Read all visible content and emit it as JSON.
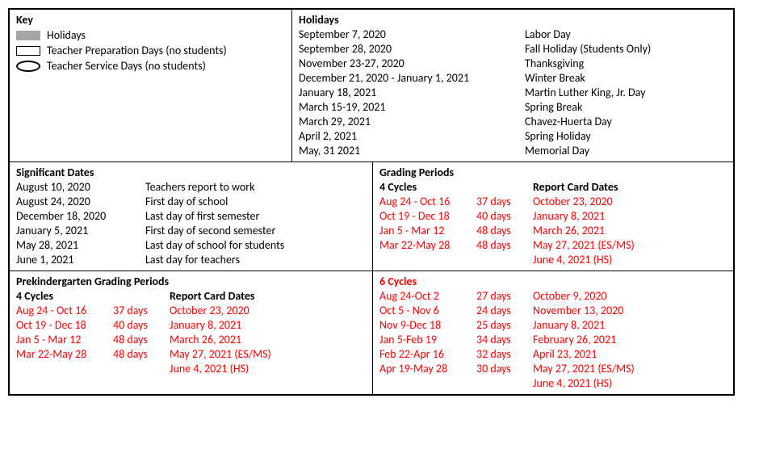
{
  "key": {
    "header": "Key",
    "legend": [
      {
        "swatch_class": "swatch-gray",
        "label": "Holidays"
      },
      {
        "swatch_class": "swatch-white",
        "label": "Teacher Preparation Days (no students)"
      },
      {
        "swatch_class": "swatch-oval",
        "label": "Teacher Service Days (no students)"
      }
    ]
  },
  "holidays": {
    "header": "Holidays",
    "rows": [
      {
        "date": "September 7, 2020",
        "name": "Labor Day"
      },
      {
        "date": "September 28, 2020",
        "name": "Fall Holiday (Students Only)"
      },
      {
        "date": "November 23-27, 2020",
        "name": "Thanksgiving"
      },
      {
        "date": "December 21, 2020 - January 1, 2021",
        "name": "Winter Break"
      },
      {
        "date": "January 18, 2021",
        "name": "Martin Luther King, Jr. Day"
      },
      {
        "date": "March 15-19, 2021",
        "name": "Spring Break"
      },
      {
        "date": "March 29, 2021",
        "name": "Chavez-Huerta Day"
      },
      {
        "date": "April 2, 2021",
        "name": "Spring Holiday"
      },
      {
        "date": "May, 31 2021",
        "name": "Memorial Day"
      }
    ]
  },
  "significant": {
    "header": "Significant Dates",
    "rows": [
      {
        "date": "August 10, 2020",
        "desc": "Teachers report to work"
      },
      {
        "date": "August 24, 2020",
        "desc": "First day of school"
      },
      {
        "date": "December 18, 2020",
        "desc": "Last day of first semester"
      },
      {
        "date": "January 5, 2021",
        "desc": "First day of second semester"
      },
      {
        "date": "May 28, 2021",
        "desc": "Last day of school for students"
      },
      {
        "date": "June 1, 2021",
        "desc": "Last day for teachers"
      }
    ]
  },
  "grading": {
    "header": "Grading Periods",
    "four_header": "4 Cycles",
    "report_header": "Report Card Dates",
    "four_rows": [
      {
        "range": "Aug 24 - Oct 16",
        "days": "37 days",
        "report": "October 23, 2020"
      },
      {
        "range": "Oct 19 - Dec 18",
        "days": "40 days",
        "report": "January 8, 2021"
      },
      {
        "range": "Jan 5 - Mar 12",
        "days": "48 days",
        "report": "March 26, 2021"
      },
      {
        "range": "Mar 22-May 28",
        "days": "48 days",
        "report": "May 27, 2021 (ES/MS)"
      }
    ],
    "four_extra": {
      "range": "",
      "days": "",
      "report": "June 4, 2021 (HS)"
    },
    "six_header": "6 Cycles",
    "six_rows": [
      {
        "range": "Aug 24-Oct 2",
        "days": "27 days",
        "report": "October 9, 2020"
      },
      {
        "range": "Oct 5 - Nov 6",
        "days": "24 days",
        "report": "November 13, 2020"
      },
      {
        "range": "Nov 9-Dec 18",
        "days": "25 days",
        "report": "January 8, 2021"
      },
      {
        "range": "Jan 5-Feb 19",
        "days": "34 days",
        "report": "February 26, 2021"
      },
      {
        "range": "Feb 22-Apr 16",
        "days": "32 days",
        "report": "April 23, 2021"
      },
      {
        "range": "Apr 19-May 28",
        "days": "30 days",
        "report": "May 27, 2021 (ES/MS)"
      }
    ],
    "six_extra": {
      "range": "",
      "days": "",
      "report": "June 4, 2021 (HS)"
    }
  },
  "prek": {
    "header": "Prekindergarten Grading Periods",
    "four_header": "4 Cycles",
    "report_header": "Report Card Dates",
    "rows": [
      {
        "range": "Aug 24 - Oct 16",
        "days": "37 days",
        "report": "October 23, 2020"
      },
      {
        "range": "Oct 19 - Dec 18",
        "days": "40 days",
        "report": "January 8, 2021"
      },
      {
        "range": "Jan 5 - Mar 12",
        "days": "48 days",
        "report": "March 26, 2021"
      },
      {
        "range": "Mar 22-May 28",
        "days": "48 days",
        "report": "May 27, 2021 (ES/MS)"
      }
    ],
    "extra": {
      "range": "",
      "days": "",
      "report": "June 4, 2021 (HS)"
    }
  }
}
